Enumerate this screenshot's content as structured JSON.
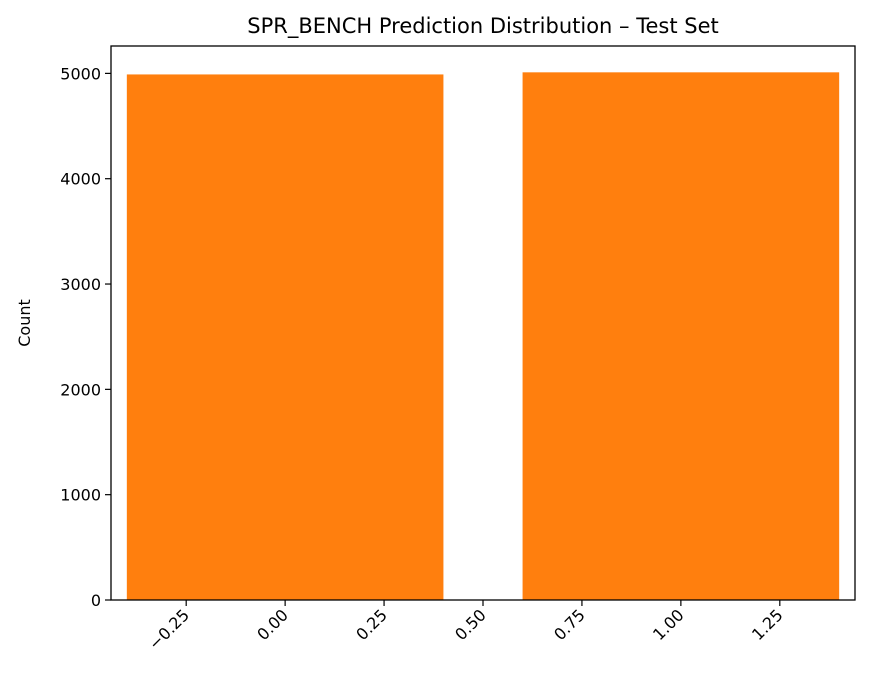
{
  "chart_data": {
    "type": "bar",
    "title": "SPR_BENCH Prediction Distribution – Test Set",
    "xlabel": "",
    "ylabel": "Count",
    "x": [
      0,
      1
    ],
    "values": [
      4990,
      5010
    ],
    "bar_width": 0.8,
    "bar_color": "#ff7f0e",
    "xlim": [
      -0.44,
      1.44
    ],
    "ylim": [
      0,
      5260
    ],
    "xticks": [
      -0.25,
      0.0,
      0.25,
      0.5,
      0.75,
      1.0,
      1.25
    ],
    "xtick_labels": [
      "−0.25",
      "0.00",
      "0.25",
      "0.50",
      "0.75",
      "1.00",
      "1.25"
    ],
    "yticks": [
      0,
      1000,
      2000,
      3000,
      4000,
      5000
    ],
    "ytick_labels": [
      "0",
      "1000",
      "2000",
      "3000",
      "4000",
      "5000"
    ],
    "grid": false,
    "legend": "none"
  }
}
